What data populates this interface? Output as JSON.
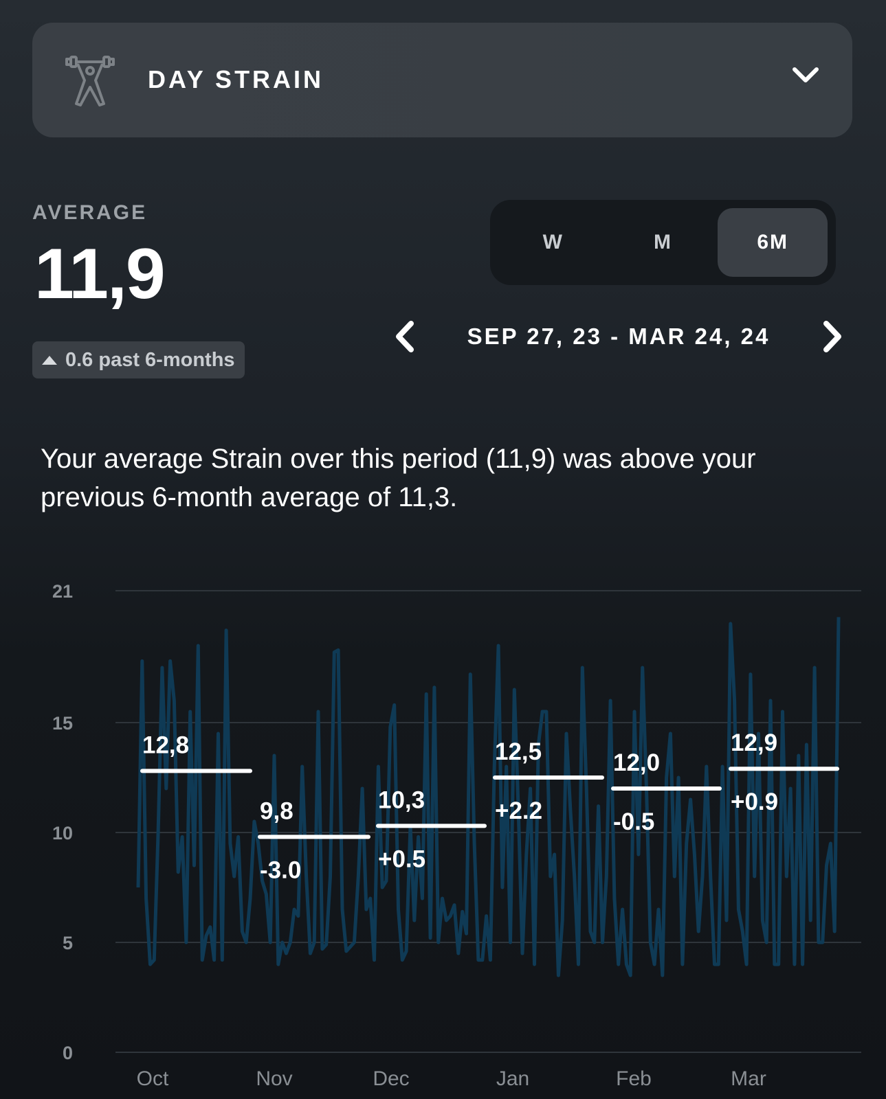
{
  "header": {
    "title": "DAY STRAIN",
    "icon": "weightlifter-icon"
  },
  "summary": {
    "label": "AVERAGE",
    "value": "11,9",
    "change": "0.6 past 6-months"
  },
  "range_tabs": [
    {
      "label": "W",
      "active": false
    },
    {
      "label": "M",
      "active": false
    },
    {
      "label": "6M",
      "active": true
    }
  ],
  "date_range": "SEP 27, 23 - MAR 24, 24",
  "description": "Your average Strain over this period (11,9) was above your previous 6-month average of 11,3.",
  "chart_data": {
    "type": "line",
    "ylim": [
      0,
      21
    ],
    "yticks": [
      "0",
      "5",
      "10",
      "15",
      "21"
    ],
    "ytick_values": [
      0,
      5,
      10,
      15,
      21
    ],
    "months": [
      {
        "label": "Oct",
        "avg": "12,8",
        "avg_value": 12.8,
        "delta": ""
      },
      {
        "label": "Nov",
        "avg": "9,8",
        "avg_value": 9.8,
        "delta": "-3.0"
      },
      {
        "label": "Dec",
        "avg": "10,3",
        "avg_value": 10.3,
        "delta": "+0.5"
      },
      {
        "label": "Jan",
        "avg": "12,5",
        "avg_value": 12.5,
        "delta": "+2.2"
      },
      {
        "label": "Feb",
        "avg": "12,0",
        "avg_value": 12.0,
        "delta": "-0.5"
      },
      {
        "label": "Mar",
        "avg": "12,9",
        "avg_value": 12.9,
        "delta": "+0.9"
      }
    ],
    "series_color": "#0f3a55",
    "daily_strain": [
      7.5,
      17.8,
      7,
      4,
      4.2,
      10,
      17.5,
      12,
      17.8,
      16,
      8.2,
      9.8,
      5,
      15.5,
      8.5,
      18.5,
      4.2,
      5.3,
      5.7,
      4.2,
      14.5,
      4.2,
      19.2,
      9.5,
      8,
      9.8,
      5.5,
      5,
      7,
      10.5,
      9.5,
      7.8,
      7.2,
      5,
      13.5,
      4,
      5,
      4.5,
      5,
      6.5,
      6.2,
      13,
      8,
      4.5,
      5,
      15.5,
      4.7,
      4.9,
      8,
      18.2,
      18.3,
      6.5,
      4.6,
      4.8,
      5,
      8,
      12,
      6.5,
      7,
      4.2,
      13,
      7.5,
      7.8,
      14.8,
      15.8,
      6.5,
      4.2,
      4.6,
      10.3,
      6,
      9.8,
      7,
      16.3,
      5.2,
      16.6,
      5,
      7,
      6,
      6.2,
      6.7,
      4.5,
      6.4,
      5.4,
      17.2,
      9.5,
      4.2,
      4.2,
      6.2,
      4.2,
      13,
      18.5,
      7.5,
      13,
      5,
      16.5,
      11,
      4.5,
      9,
      12,
      4,
      14,
      15.5,
      15.5,
      8,
      9,
      3.5,
      6,
      14.5,
      11,
      8,
      4,
      17.5,
      12,
      5.5,
      5,
      11.2,
      5,
      8,
      16,
      7,
      4,
      6.5,
      4,
      3.5,
      15.5,
      9,
      17.5,
      12,
      5,
      4,
      6.5,
      3.5,
      12.5,
      14.5,
      8,
      12.5,
      4,
      9.5,
      11.5,
      9,
      5.5,
      8,
      13,
      8,
      4,
      4,
      13,
      6,
      19.5,
      16,
      6.5,
      5.5,
      4,
      17.2,
      8,
      14.5,
      6,
      5,
      16,
      4,
      4,
      15.5,
      8,
      12,
      4,
      13.5,
      4,
      14,
      6,
      17.5,
      5,
      5,
      8.5,
      9.5,
      5.5,
      19.8
    ]
  }
}
